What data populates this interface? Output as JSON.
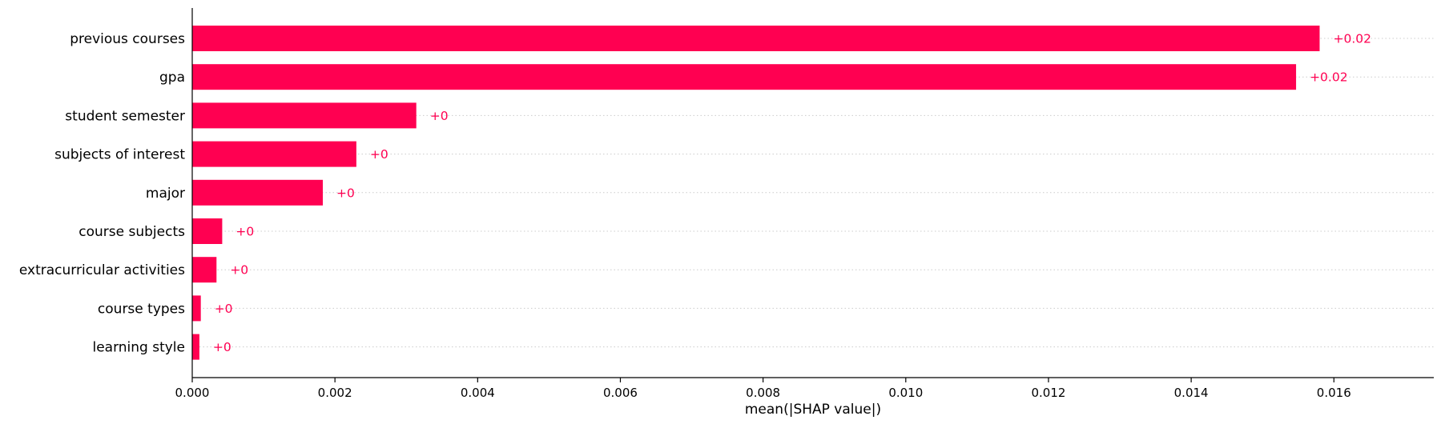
{
  "chart_data": {
    "type": "bar",
    "orientation": "horizontal",
    "categories": [
      "previous courses",
      "gpa",
      "student semester",
      "subjects of interest",
      "major",
      "course subjects",
      "extracurricular activities",
      "course types",
      "learning style"
    ],
    "values": [
      0.0158,
      0.01547,
      0.00314,
      0.0023,
      0.00183,
      0.00042,
      0.00034,
      0.00012,
      0.0001
    ],
    "data_labels": [
      "+0.02",
      "+0.02",
      "+0",
      "+0",
      "+0",
      "+0",
      "+0",
      "+0",
      "+0"
    ],
    "xlabel": "mean(|SHAP value|)",
    "ylabel": "",
    "xlim": [
      0,
      0.0174
    ],
    "xticks": [
      0,
      0.002,
      0.004,
      0.006,
      0.008,
      0.01,
      0.012,
      0.014,
      0.016
    ],
    "xtick_labels": [
      "0.000",
      "0.002",
      "0.004",
      "0.006",
      "0.008",
      "0.010",
      "0.012",
      "0.014",
      "0.016"
    ],
    "bar_color": "#ff0051",
    "label_color": "#ff0051",
    "grid": "horizontal dotted"
  }
}
